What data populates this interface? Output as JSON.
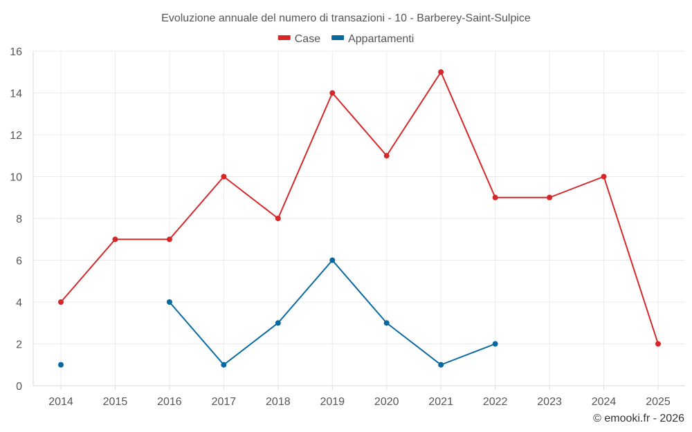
{
  "chart_data": {
    "type": "line",
    "title": "Evoluzione annuale del numero di transazioni - 10 - Barberey-Saint-Sulpice",
    "xlabel": "",
    "ylabel": "",
    "categories": [
      "2014",
      "2015",
      "2016",
      "2017",
      "2018",
      "2019",
      "2020",
      "2021",
      "2022",
      "2023",
      "2024",
      "2025"
    ],
    "ylim": [
      0,
      16
    ],
    "yticks": [
      0,
      2,
      4,
      6,
      8,
      10,
      12,
      14,
      16
    ],
    "grid": true,
    "legend_position": "top-center",
    "series": [
      {
        "name": "Case",
        "color": "#d62728",
        "values": [
          4,
          7,
          7,
          10,
          8,
          14,
          11,
          15,
          9,
          9,
          10,
          2
        ]
      },
      {
        "name": "Appartamenti",
        "color": "#0868a0",
        "values": [
          1,
          null,
          4,
          1,
          3,
          6,
          3,
          1,
          2,
          null,
          null,
          null
        ]
      }
    ]
  },
  "credit": "© emooki.fr - 2026"
}
